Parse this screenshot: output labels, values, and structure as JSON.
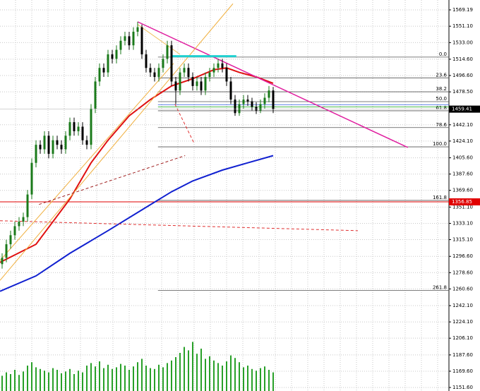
{
  "chart_data": {
    "type": "candlestick",
    "ylim": [
      1147.7,
      1580.1
    ],
    "yticks": [
      1569.19,
      {
        "value": 1551.1,
        "label": "1551.10"
      },
      {
        "value": 1533,
        "label": "1533.00"
      },
      {
        "value": 1514.6,
        "label": "1514.60"
      },
      {
        "value": 1496.6,
        "label": "1496.60"
      },
      {
        "value": 1478.5,
        "label": "1478.50"
      },
      {
        "value": 1442.1,
        "label": "1442.10"
      },
      {
        "value": 1424.1,
        "label": "1424.10"
      },
      {
        "value": 1405.6,
        "label": "1405.60"
      },
      {
        "value": 1387.6,
        "label": "1387.60"
      },
      {
        "value": 1369.6,
        "label": "1369.60"
      },
      {
        "value": 1351.1,
        "label": "1351.10"
      },
      {
        "value": 1333.1,
        "label": "1333.10"
      },
      {
        "value": 1315.1,
        "label": "1315.10"
      },
      {
        "value": 1296.6,
        "label": "1296.60"
      },
      {
        "value": 1278.6,
        "label": "1278.60"
      },
      {
        "value": 1260.6,
        "label": "1260.60"
      },
      {
        "value": 1242.1,
        "label": "1242.10"
      },
      {
        "value": 1224.1,
        "label": "1224.10"
      },
      {
        "value": 1206.1,
        "label": "1206.10"
      },
      {
        "value": 1187.6,
        "label": "1187.60"
      },
      {
        "value": 1169.6,
        "label": "1169.60"
      },
      {
        "value": 1151.6,
        "label": "1151.60"
      }
    ],
    "grid": true,
    "up_color": "#1a7a1a",
    "down_color": "#000000",
    "open": [
      1288,
      1295,
      1310,
      1320,
      1330,
      1335,
      1340,
      1365,
      1400,
      1420,
      1415,
      1430,
      1410,
      1425,
      1420,
      1415,
      1430,
      1445,
      1435,
      1440,
      1425,
      1420,
      1460,
      1490,
      1505,
      1500,
      1520,
      1515,
      1525,
      1535,
      1540,
      1530,
      1545,
      1550,
      1520,
      1505,
      1500,
      1495,
      1505,
      1515,
      1530,
      1490,
      1480,
      1500,
      1505,
      1495,
      1485,
      1490,
      1480,
      1495,
      1500,
      1505,
      1510,
      1505,
      1490,
      1470,
      1455,
      1465,
      1470,
      1468,
      1462,
      1458,
      1465,
      1472,
      1480
    ],
    "high": [
      1300,
      1315,
      1325,
      1335,
      1340,
      1345,
      1370,
      1405,
      1425,
      1425,
      1435,
      1435,
      1430,
      1430,
      1425,
      1435,
      1450,
      1450,
      1445,
      1445,
      1430,
      1465,
      1495,
      1510,
      1510,
      1525,
      1525,
      1530,
      1540,
      1545,
      1545,
      1550,
      1556,
      1553,
      1525,
      1510,
      1505,
      1510,
      1520,
      1535,
      1535,
      1495,
      1505,
      1510,
      1510,
      1500,
      1495,
      1495,
      1500,
      1505,
      1510,
      1515,
      1515,
      1510,
      1495,
      1475,
      1470,
      1475,
      1475,
      1472,
      1467,
      1470,
      1477,
      1485,
      1484
    ],
    "low": [
      1283,
      1290,
      1305,
      1315,
      1325,
      1330,
      1335,
      1360,
      1395,
      1410,
      1410,
      1405,
      1405,
      1415,
      1410,
      1410,
      1425,
      1430,
      1430,
      1420,
      1415,
      1415,
      1455,
      1485,
      1495,
      1495,
      1510,
      1510,
      1520,
      1530,
      1525,
      1525,
      1540,
      1515,
      1500,
      1495,
      1490,
      1490,
      1500,
      1510,
      1485,
      1465,
      1475,
      1495,
      1490,
      1480,
      1480,
      1475,
      1475,
      1490,
      1495,
      1500,
      1500,
      1485,
      1465,
      1452,
      1452,
      1460,
      1463,
      1458,
      1454,
      1455,
      1460,
      1467,
      1455
    ],
    "close": [
      1295,
      1310,
      1320,
      1330,
      1335,
      1340,
      1365,
      1400,
      1420,
      1415,
      1430,
      1410,
      1425,
      1420,
      1415,
      1430,
      1445,
      1435,
      1440,
      1425,
      1420,
      1460,
      1490,
      1505,
      1500,
      1520,
      1515,
      1525,
      1535,
      1540,
      1530,
      1545,
      1550,
      1520,
      1505,
      1500,
      1495,
      1505,
      1515,
      1530,
      1490,
      1480,
      1500,
      1505,
      1495,
      1485,
      1490,
      1480,
      1495,
      1500,
      1505,
      1510,
      1505,
      1490,
      1470,
      1455,
      1465,
      1470,
      1468,
      1462,
      1458,
      1465,
      1472,
      1480,
      1459.41
    ],
    "volume": [
      18,
      22,
      20,
      25,
      19,
      23,
      30,
      34,
      28,
      26,
      24,
      22,
      27,
      25,
      21,
      23,
      26,
      20,
      24,
      22,
      30,
      33,
      29,
      35,
      27,
      31,
      26,
      28,
      32,
      30,
      25,
      29,
      34,
      38,
      30,
      27,
      26,
      31,
      28,
      33,
      36,
      40,
      45,
      52,
      48,
      58,
      44,
      50,
      38,
      41,
      36,
      33,
      30,
      35,
      42,
      39,
      34,
      28,
      30,
      26,
      24,
      27,
      29,
      25,
      22
    ],
    "ma_red": {
      "color": "#e01010",
      "x": [
        -0.5,
        8,
        16,
        21,
        25,
        30,
        35,
        40,
        45,
        50,
        53,
        56,
        60,
        64
      ],
      "values": [
        1290,
        1310,
        1360,
        1400,
        1425,
        1452,
        1470,
        1485,
        1493,
        1503,
        1505,
        1500,
        1495,
        1488
      ]
    },
    "ma_blue": {
      "color": "#1020d0",
      "x": [
        -0.5,
        8,
        16,
        25,
        33,
        40,
        45,
        52,
        58,
        64
      ],
      "values": [
        1258,
        1275,
        1300,
        1325,
        1348,
        1368,
        1380,
        1392,
        1400,
        1408
      ]
    },
    "trendlines": [
      {
        "color": "#e020a0",
        "dash": false,
        "x": [
          32,
          95.8
        ],
        "values": [
          1556,
          1417
        ]
      },
      {
        "color": "#f0b040",
        "dash": false,
        "x": [
          -0.5,
          54.5
        ],
        "values": [
          1270,
          1576
        ]
      },
      {
        "color": "#f0b040",
        "dash": false,
        "x": [
          -0.5,
          40.5
        ],
        "values": [
          1292,
          1510
        ]
      },
      {
        "color": "#f0c060",
        "dash": false,
        "x": [
          32,
          42
        ],
        "values": [
          1553,
          1520
        ]
      },
      {
        "color": "#a02020",
        "dash": true,
        "x": [
          8.7,
          43.2
        ],
        "values": [
          1354,
          1408
        ]
      },
      {
        "color": "#e03030",
        "dash": true,
        "x": [
          -0.5,
          84
        ],
        "values": [
          1336,
          1325
        ]
      },
      {
        "color": "#e03030",
        "dash": true,
        "x": [
          40.8,
          45.3
        ],
        "values": [
          1465,
          1422
        ]
      },
      {
        "color": "#20d0d0",
        "dash": false,
        "x": [
          40,
          55.3
        ],
        "values": [
          1518,
          1518
        ]
      }
    ],
    "fib_start": 36.8,
    "fib_levels": [
      {
        "label": "0.0",
        "value": 1517
      },
      {
        "label": "23.6",
        "value": 1494
      },
      {
        "label": "38.2",
        "value": 1478.6
      },
      {
        "label": "50.0",
        "value": 1467.7
      },
      {
        "label": "61.8",
        "value": 1457.6
      },
      {
        "label": "78.6",
        "value": 1439
      },
      {
        "label": "100.0",
        "value": 1417.7
      },
      {
        "label": "161.8",
        "value": 1358.5
      },
      {
        "label": "261.8",
        "value": 1259
      }
    ],
    "order_lines": [
      1464.2,
      1461.8
    ],
    "support_line": 1356.85,
    "last_price": 1459.41
  }
}
